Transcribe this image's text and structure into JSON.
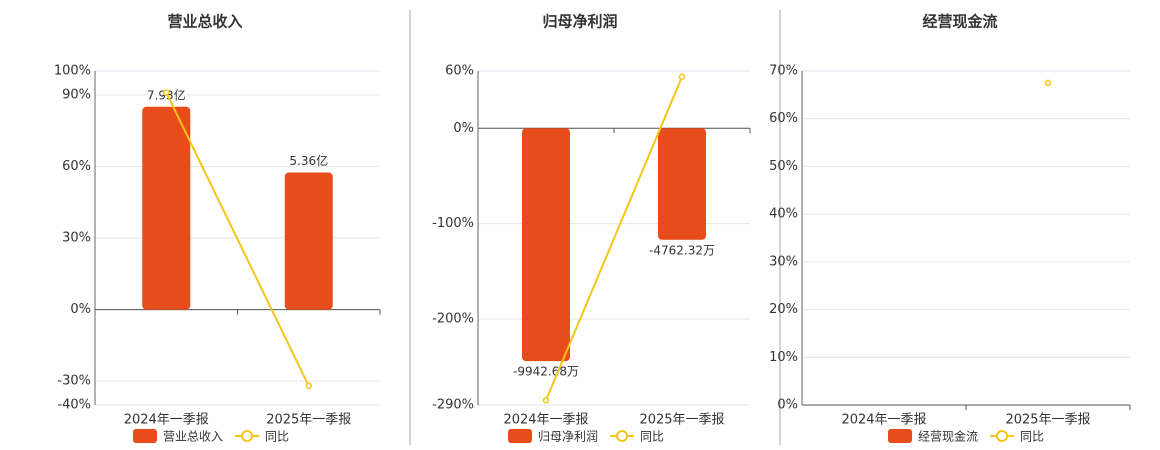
{
  "chart_data": [
    {
      "type": "bar",
      "title": "营业总收入",
      "categories": [
        "2024年一季报",
        "2025年一季报"
      ],
      "series": [
        {
          "name": "营业总收入",
          "type": "bar",
          "axis": "y2",
          "color": "#e84c1a",
          "values": [
            7.93,
            5.36
          ],
          "value_labels": [
            "7.93亿",
            "5.36亿"
          ]
        },
        {
          "name": "同比",
          "type": "line",
          "color": "#f5c518",
          "values": [
            91,
            -32
          ]
        }
      ],
      "ylim": [
        -40,
        100
      ],
      "yticks": [
        {
          "value": 100,
          "label": "100%"
        },
        {
          "value": 90,
          "label": "90%"
        },
        {
          "value": 60,
          "label": "60%"
        },
        {
          "value": 30,
          "label": "30%"
        },
        {
          "value": 0,
          "label": "0%"
        },
        {
          "value": -30,
          "label": "-30%"
        },
        {
          "value": -40,
          "label": "-40%"
        }
      ],
      "y2lim": [
        -3.73,
        9.33
      ],
      "grid": true
    },
    {
      "type": "bar",
      "title": "归母净利润",
      "categories": [
        "2024年一季报",
        "2025年一季报"
      ],
      "series": [
        {
          "name": "归母净利润",
          "type": "bar",
          "axis": "y2",
          "color": "#e84c1a",
          "values": [
            -9942.68,
            -4762.32
          ],
          "value_labels": [
            "-9942.68万",
            "-4762.32万"
          ]
        },
        {
          "name": "同比",
          "type": "line",
          "color": "#f5c518",
          "values": [
            -285,
            54
          ]
        }
      ],
      "ylim": [
        -290,
        60
      ],
      "yticks": [
        {
          "value": 60,
          "label": "60%"
        },
        {
          "value": 0,
          "label": "0%"
        },
        {
          "value": -100,
          "label": "-100%"
        },
        {
          "value": -200,
          "label": "-200%"
        },
        {
          "value": -290,
          "label": "-290%"
        }
      ],
      "y2lim": [
        -11817,
        2445
      ],
      "grid": true
    },
    {
      "type": "bar",
      "title": "经营现金流",
      "categories": [
        "2024年一季报",
        "2025年一季报"
      ],
      "series": [
        {
          "name": "经营现金流",
          "type": "bar",
          "axis": "y2",
          "color": "#e84c1a",
          "values": [
            null,
            null
          ]
        },
        {
          "name": "同比",
          "type": "line",
          "color": "#f5c518",
          "values": [
            null,
            67.5
          ]
        }
      ],
      "ylim": [
        0,
        70
      ],
      "yticks": [
        {
          "value": 70,
          "label": "70%"
        },
        {
          "value": 60,
          "label": "60%"
        },
        {
          "value": 50,
          "label": "50%"
        },
        {
          "value": 40,
          "label": "40%"
        },
        {
          "value": 30,
          "label": "30%"
        },
        {
          "value": 20,
          "label": "20%"
        },
        {
          "value": 10,
          "label": "10%"
        },
        {
          "value": 0,
          "label": "0%"
        }
      ],
      "grid": true
    }
  ]
}
